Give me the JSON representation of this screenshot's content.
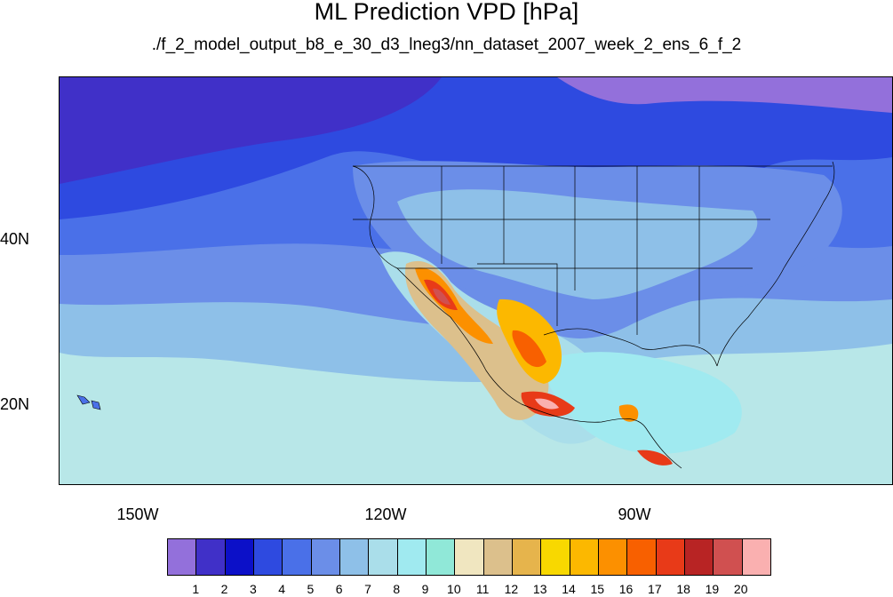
{
  "title": "ML Prediction VPD [hPa]",
  "subtitle": "./f_2_model_output_b8_e_30_d3_lneg3/nn_dataset_2007_week_2_ens_6_f_2",
  "map": {
    "projection": "cylindrical equidistant",
    "lon_range": [
      -160,
      -60
    ],
    "lat_range": [
      10,
      59
    ],
    "variable": "VPD",
    "units": "hPa",
    "lat_ticks": [
      "40N",
      "20N"
    ],
    "lon_ticks": [
      "150W",
      "120W",
      "90W"
    ]
  },
  "colorbar": {
    "labels": [
      "1",
      "2",
      "3",
      "4",
      "5",
      "6",
      "7",
      "8",
      "9",
      "10",
      "11",
      "12",
      "13",
      "14",
      "15",
      "16",
      "17",
      "18",
      "19",
      "20"
    ],
    "colors": [
      "#9370db",
      "#4030c8",
      "#0c10c8",
      "#2e4ae0",
      "#4a70e8",
      "#6b8ee8",
      "#8ec0e8",
      "#aadeea",
      "#a0eaf0",
      "#90e8d8",
      "#f0e6c0",
      "#dcc08c",
      "#e6b44c",
      "#f8d800",
      "#fcb800",
      "#fc9000",
      "#f86000",
      "#e83a18",
      "#b82424",
      "#d05050",
      "#fab0b0"
    ]
  }
}
